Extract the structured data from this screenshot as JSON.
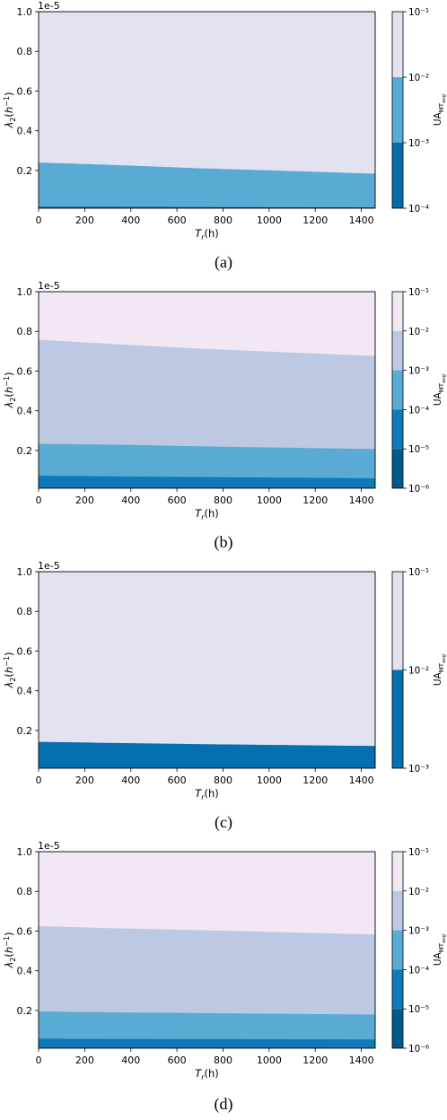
{
  "chart_data": [
    {
      "type": "area",
      "panel": "(a)",
      "xlabel_html": "T_r(h)",
      "ylabel": "λ2(h⁻¹)",
      "y_offset_text": "1e-5",
      "xlim": [
        0,
        1460
      ],
      "ylim": [
        0.01,
        1.0
      ],
      "x_ticks": [
        "0",
        "200",
        "400",
        "600",
        "800",
        "1000",
        "1200",
        "1400"
      ],
      "y_ticks": [
        "0.2",
        "0.4",
        "0.6",
        "0.8",
        "1.0"
      ],
      "y_tick_values": [
        0.2,
        0.4,
        0.6,
        0.8,
        1.0
      ],
      "colorbar_label": "UA_MT_avg",
      "colorbar_ticks": [
        "10⁻⁴",
        "10⁻³",
        "10⁻²",
        "10⁻¹"
      ],
      "bands": [
        {
          "range": "1e-4 – 1e-3",
          "color": "#056ba9",
          "upper": [
            [
              0,
              0.018
            ],
            [
              1460,
              0.014
            ]
          ]
        },
        {
          "range": "1e-3 – 1e-2",
          "color": "#5aabd4",
          "upper": [
            [
              0,
              0.24
            ],
            [
              300,
              0.229
            ],
            [
              700,
              0.211
            ],
            [
              1100,
              0.197
            ],
            [
              1460,
              0.184
            ]
          ]
        },
        {
          "range": "1e-2 – 1e-1",
          "color": "#e3e2f0",
          "upper": [
            [
              0,
              1.0
            ],
            [
              1460,
              1.0
            ]
          ]
        }
      ]
    },
    {
      "type": "area",
      "panel": "(b)",
      "xlabel_html": "T_r(h)",
      "ylabel": "λ2(h⁻¹)",
      "y_offset_text": "1e-5",
      "xlim": [
        0,
        1460
      ],
      "ylim": [
        0.01,
        1.0
      ],
      "x_ticks": [
        "0",
        "200",
        "400",
        "600",
        "800",
        "1000",
        "1200",
        "1400"
      ],
      "y_ticks": [
        "0.2",
        "0.4",
        "0.6",
        "0.8",
        "1.0"
      ],
      "y_tick_values": [
        0.2,
        0.4,
        0.6,
        0.8,
        1.0
      ],
      "colorbar_label": "UA_MT_avg",
      "colorbar_ticks": [
        "10⁻⁶",
        "10⁻⁵",
        "10⁻⁴",
        "10⁻³",
        "10⁻²",
        "10⁻¹"
      ],
      "bands": [
        {
          "range": "1e-6 – 1e-5",
          "color": "#04598c",
          "upper": [
            [
              0,
              0.012
            ],
            [
              1460,
              0.01
            ]
          ]
        },
        {
          "range": "1e-5 – 1e-4",
          "color": "#0f7ab7",
          "upper": [
            [
              0,
              0.073
            ],
            [
              500,
              0.068
            ],
            [
              1000,
              0.064
            ],
            [
              1460,
              0.06
            ]
          ]
        },
        {
          "range": "1e-4 – 1e-3",
          "color": "#5aabd4",
          "upper": [
            [
              0,
              0.234
            ],
            [
              400,
              0.228
            ],
            [
              800,
              0.219
            ],
            [
              1200,
              0.212
            ],
            [
              1460,
              0.207
            ]
          ]
        },
        {
          "range": "1e-3 – 1e-2",
          "color": "#bdc9e3",
          "upper": [
            [
              0,
              0.758
            ],
            [
              300,
              0.738
            ],
            [
              700,
              0.713
            ],
            [
              1100,
              0.693
            ],
            [
              1460,
              0.676
            ]
          ]
        },
        {
          "range": "1e-2 – 1e-1",
          "color": "#f1e8f3",
          "upper": [
            [
              0,
              1.0
            ],
            [
              1460,
              1.0
            ]
          ]
        }
      ]
    },
    {
      "type": "area",
      "panel": "(c)",
      "xlabel_html": "T_r(h)",
      "ylabel": "λ2(h⁻¹)",
      "y_offset_text": "1e-5",
      "xlim": [
        0,
        1460
      ],
      "ylim": [
        0.01,
        1.0
      ],
      "x_ticks": [
        "0",
        "200",
        "400",
        "600",
        "800",
        "1000",
        "1200",
        "1400"
      ],
      "y_ticks": [
        "0.2",
        "0.4",
        "0.6",
        "0.8",
        "1.0"
      ],
      "y_tick_values": [
        0.2,
        0.4,
        0.6,
        0.8,
        1.0
      ],
      "colorbar_label": "UA_MT_avg",
      "colorbar_ticks": [
        "10⁻³",
        "10⁻²",
        "10⁻¹"
      ],
      "bands": [
        {
          "range": "1e-3 – 1e-2",
          "color": "#0570b0",
          "upper": [
            [
              0,
              0.143
            ],
            [
              400,
              0.136
            ],
            [
              800,
              0.13
            ],
            [
              1200,
              0.125
            ],
            [
              1460,
              0.122
            ]
          ]
        },
        {
          "range": "1e-2 – 1e-1",
          "color": "#e3e2f0",
          "upper": [
            [
              0,
              1.0
            ],
            [
              1460,
              1.0
            ]
          ]
        }
      ]
    },
    {
      "type": "area",
      "panel": "(d)",
      "xlabel_html": "T_r(h)",
      "ylabel": "λ2(h⁻¹)",
      "y_offset_text": "1e-5",
      "xlim": [
        0,
        1460
      ],
      "ylim": [
        0.01,
        1.0
      ],
      "x_ticks": [
        "0",
        "200",
        "400",
        "600",
        "800",
        "1000",
        "1200",
        "1400"
      ],
      "y_ticks": [
        "0.2",
        "0.4",
        "0.6",
        "0.8",
        "1.0"
      ],
      "y_tick_values": [
        0.2,
        0.4,
        0.6,
        0.8,
        1.0
      ],
      "colorbar_label": "UA_MT_avg",
      "colorbar_ticks": [
        "10⁻⁶",
        "10⁻⁵",
        "10⁻⁴",
        "10⁻³",
        "10⁻²",
        "10⁻¹"
      ],
      "bands": [
        {
          "range": "1e-6 – 1e-5",
          "color": "#04598c",
          "upper": [
            [
              0,
              0.012
            ],
            [
              1460,
              0.01
            ]
          ]
        },
        {
          "range": "1e-5 – 1e-4",
          "color": "#0f7ab7",
          "upper": [
            [
              0,
              0.058
            ],
            [
              700,
              0.056
            ],
            [
              1460,
              0.054
            ]
          ]
        },
        {
          "range": "1e-4 – 1e-3",
          "color": "#5aabd4",
          "upper": [
            [
              0,
              0.195
            ],
            [
              400,
              0.19
            ],
            [
              800,
              0.186
            ],
            [
              1200,
              0.182
            ],
            [
              1460,
              0.18
            ]
          ]
        },
        {
          "range": "1e-3 – 1e-2",
          "color": "#bdc9e3",
          "upper": [
            [
              0,
              0.625
            ],
            [
              300,
              0.615
            ],
            [
              700,
              0.605
            ],
            [
              1100,
              0.593
            ],
            [
              1460,
              0.583
            ]
          ]
        },
        {
          "range": "1e-2 – 1e-1",
          "color": "#f1e8f3",
          "upper": [
            [
              0,
              1.0
            ],
            [
              1460,
              1.0
            ]
          ]
        }
      ]
    }
  ]
}
